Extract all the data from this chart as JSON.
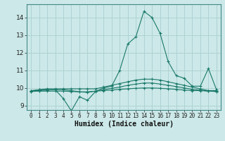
{
  "xlabel": "Humidex (Indice chaleur)",
  "background_color": "#cce8e8",
  "grid_color": "#aad0d0",
  "line_color": "#1a7a6a",
  "xlim": [
    -0.5,
    23.5
  ],
  "ylim": [
    8.75,
    14.75
  ],
  "yticks": [
    9,
    10,
    11,
    12,
    13,
    14
  ],
  "xticks": [
    0,
    1,
    2,
    3,
    4,
    5,
    6,
    7,
    8,
    9,
    10,
    11,
    12,
    13,
    14,
    15,
    16,
    17,
    18,
    19,
    20,
    21,
    22,
    23
  ],
  "series": [
    [
      9.8,
      9.9,
      9.9,
      9.9,
      9.4,
      8.7,
      9.5,
      9.3,
      9.8,
      10.0,
      10.1,
      11.0,
      12.5,
      12.9,
      14.35,
      14.0,
      13.1,
      11.5,
      10.7,
      10.55,
      10.1,
      10.1,
      11.1,
      9.9
    ],
    [
      9.85,
      9.9,
      9.95,
      9.95,
      9.95,
      9.95,
      9.95,
      9.95,
      9.95,
      10.05,
      10.15,
      10.25,
      10.35,
      10.45,
      10.5,
      10.5,
      10.45,
      10.35,
      10.25,
      10.15,
      10.05,
      9.95,
      9.85,
      9.85
    ],
    [
      9.82,
      9.85,
      9.88,
      9.9,
      9.9,
      9.85,
      9.78,
      9.75,
      9.82,
      9.9,
      9.98,
      10.05,
      10.15,
      10.22,
      10.28,
      10.28,
      10.22,
      10.15,
      10.08,
      10.0,
      9.92,
      9.88,
      9.82,
      9.8
    ],
    [
      9.8,
      9.82,
      9.82,
      9.82,
      9.82,
      9.8,
      9.78,
      9.78,
      9.82,
      9.85,
      9.88,
      9.92,
      9.95,
      9.98,
      10.0,
      10.0,
      9.98,
      9.95,
      9.92,
      9.88,
      9.85,
      9.85,
      9.82,
      9.8
    ]
  ]
}
